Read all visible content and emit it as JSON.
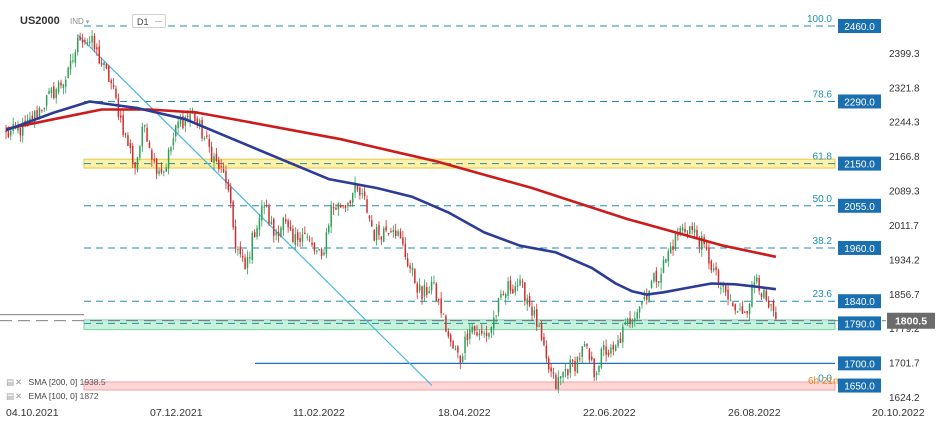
{
  "header": {
    "symbol": "US2000",
    "sub_label": "IND",
    "timeframe": "D1"
  },
  "colors": {
    "candle_up": "#2e9e57",
    "candle_down": "#d12b2b",
    "sma200": "#cc1b1b",
    "ema100": "#2b3b97",
    "fib_line": "#1f8fb0",
    "trendline": "#4ab7e6",
    "support_line": "#1f6fb5",
    "zone_yellow": "#fff1a8",
    "zone_green": "#c9f2dc",
    "zone_pink": "#ffd6d6",
    "level_box": "#1a6fb0",
    "current_box": "#6b6b6b"
  },
  "chart_data": {
    "type": "candlestick",
    "symbol": "US2000",
    "timeframe": "D1",
    "x_tick_labels": [
      "04.10.2021",
      "07.12.2021",
      "11.02.2022",
      "18.04.2022",
      "22.06.2022",
      "26.08.2022",
      "20.10.2022"
    ],
    "y_tick_labels": [
      2399.3,
      2321.8,
      2244.3,
      2166.8,
      2089.3,
      2011.7,
      1934.2,
      1856.7,
      1779.2,
      1701.7,
      1624.2
    ],
    "y_range": [
      1624.2,
      2460.0
    ],
    "current_price": 1800.5,
    "price_levels": [
      2460.0,
      2290.0,
      2150.0,
      2055.0,
      1960.0,
      1840.0,
      1790.0,
      1700.0,
      1650.0
    ],
    "fibonacci": [
      {
        "label": "100.0",
        "value": 2460.0
      },
      {
        "label": "78.6",
        "value": 2290.0
      },
      {
        "label": "61.8",
        "value": 2150.0
      },
      {
        "label": "50.0",
        "value": 2055.0
      },
      {
        "label": "38.2",
        "value": 1960.0
      },
      {
        "label": "23.6",
        "value": 1840.0
      },
      {
        "label": "0.0",
        "value": 1650.0
      }
    ],
    "zones": [
      {
        "from": 2140,
        "to": 2160,
        "color": "yellow"
      },
      {
        "from": 1776,
        "to": 1798,
        "color": "green"
      },
      {
        "from": 1640,
        "to": 1658,
        "color": "pink"
      }
    ],
    "annotation": "6h 21m",
    "indicators": [
      {
        "name": "SMA",
        "params": "[200, 0]",
        "value": 1938.5
      },
      {
        "name": "EMA",
        "params": "[100, 0]",
        "value": 1872.0
      }
    ],
    "anchors": [
      {
        "day": 0,
        "price": 2215
      },
      {
        "day": 8,
        "price": 2230
      },
      {
        "day": 18,
        "price": 2300
      },
      {
        "day": 26,
        "price": 2350
      },
      {
        "day": 31,
        "price": 2440
      },
      {
        "day": 36,
        "price": 2420
      },
      {
        "day": 44,
        "price": 2330
      },
      {
        "day": 50,
        "price": 2210
      },
      {
        "day": 54,
        "price": 2145
      },
      {
        "day": 58,
        "price": 2240
      },
      {
        "day": 62,
        "price": 2150
      },
      {
        "day": 66,
        "price": 2135
      },
      {
        "day": 72,
        "price": 2240
      },
      {
        "day": 78,
        "price": 2265
      },
      {
        "day": 84,
        "price": 2195
      },
      {
        "day": 88,
        "price": 2150
      },
      {
        "day": 92,
        "price": 2115
      },
      {
        "day": 96,
        "price": 1970
      },
      {
        "day": 100,
        "price": 1910
      },
      {
        "day": 104,
        "price": 2000
      },
      {
        "day": 108,
        "price": 2060
      },
      {
        "day": 112,
        "price": 1990
      },
      {
        "day": 116,
        "price": 2020
      },
      {
        "day": 120,
        "price": 1970
      },
      {
        "day": 124,
        "price": 2000
      },
      {
        "day": 128,
        "price": 1960
      },
      {
        "day": 132,
        "price": 1935
      },
      {
        "day": 136,
        "price": 2050
      },
      {
        "day": 142,
        "price": 2060
      },
      {
        "day": 146,
        "price": 2090
      },
      {
        "day": 150,
        "price": 2065
      },
      {
        "day": 154,
        "price": 1990
      },
      {
        "day": 158,
        "price": 2000
      },
      {
        "day": 162,
        "price": 2015
      },
      {
        "day": 166,
        "price": 1960
      },
      {
        "day": 170,
        "price": 1900
      },
      {
        "day": 174,
        "price": 1850
      },
      {
        "day": 178,
        "price": 1880
      },
      {
        "day": 182,
        "price": 1820
      },
      {
        "day": 186,
        "price": 1740
      },
      {
        "day": 190,
        "price": 1710
      },
      {
        "day": 194,
        "price": 1790
      },
      {
        "day": 198,
        "price": 1760
      },
      {
        "day": 202,
        "price": 1770
      },
      {
        "day": 206,
        "price": 1830
      },
      {
        "day": 210,
        "price": 1870
      },
      {
        "day": 214,
        "price": 1880
      },
      {
        "day": 218,
        "price": 1850
      },
      {
        "day": 222,
        "price": 1790
      },
      {
        "day": 226,
        "price": 1700
      },
      {
        "day": 230,
        "price": 1650
      },
      {
        "day": 234,
        "price": 1685
      },
      {
        "day": 238,
        "price": 1700
      },
      {
        "day": 242,
        "price": 1735
      },
      {
        "day": 246,
        "price": 1680
      },
      {
        "day": 250,
        "price": 1730
      },
      {
        "day": 254,
        "price": 1720
      },
      {
        "day": 258,
        "price": 1770
      },
      {
        "day": 262,
        "price": 1810
      },
      {
        "day": 266,
        "price": 1840
      },
      {
        "day": 270,
        "price": 1880
      },
      {
        "day": 274,
        "price": 1910
      },
      {
        "day": 278,
        "price": 1960
      },
      {
        "day": 282,
        "price": 2000
      },
      {
        "day": 286,
        "price": 2005
      },
      {
        "day": 290,
        "price": 1980
      },
      {
        "day": 294,
        "price": 1935
      },
      {
        "day": 298,
        "price": 1880
      },
      {
        "day": 302,
        "price": 1845
      },
      {
        "day": 306,
        "price": 1810
      },
      {
        "day": 310,
        "price": 1830
      },
      {
        "day": 314,
        "price": 1900
      },
      {
        "day": 318,
        "price": 1830
      },
      {
        "day": 322,
        "price": 1800
      }
    ],
    "ema100_points": [
      {
        "day": 0,
        "price": 2225
      },
      {
        "day": 20,
        "price": 2265
      },
      {
        "day": 35,
        "price": 2290
      },
      {
        "day": 55,
        "price": 2275
      },
      {
        "day": 75,
        "price": 2250
      },
      {
        "day": 95,
        "price": 2205
      },
      {
        "day": 115,
        "price": 2160
      },
      {
        "day": 135,
        "price": 2115
      },
      {
        "day": 155,
        "price": 2095
      },
      {
        "day": 170,
        "price": 2075
      },
      {
        "day": 185,
        "price": 2040
      },
      {
        "day": 200,
        "price": 1995
      },
      {
        "day": 215,
        "price": 1965
      },
      {
        "day": 230,
        "price": 1950
      },
      {
        "day": 245,
        "price": 1915
      },
      {
        "day": 255,
        "price": 1880
      },
      {
        "day": 262,
        "price": 1862
      },
      {
        "day": 268,
        "price": 1855
      },
      {
        "day": 275,
        "price": 1860
      },
      {
        "day": 285,
        "price": 1870
      },
      {
        "day": 295,
        "price": 1880
      },
      {
        "day": 305,
        "price": 1878
      },
      {
        "day": 315,
        "price": 1872
      },
      {
        "day": 322,
        "price": 1867
      }
    ],
    "sma200_points": [
      {
        "day": 0,
        "price": 2228
      },
      {
        "day": 20,
        "price": 2250
      },
      {
        "day": 40,
        "price": 2272
      },
      {
        "day": 60,
        "price": 2272
      },
      {
        "day": 80,
        "price": 2265
      },
      {
        "day": 100,
        "price": 2245
      },
      {
        "day": 120,
        "price": 2225
      },
      {
        "day": 140,
        "price": 2205
      },
      {
        "day": 160,
        "price": 2180
      },
      {
        "day": 180,
        "price": 2155
      },
      {
        "day": 200,
        "price": 2125
      },
      {
        "day": 220,
        "price": 2095
      },
      {
        "day": 240,
        "price": 2060
      },
      {
        "day": 260,
        "price": 2025
      },
      {
        "day": 280,
        "price": 1995
      },
      {
        "day": 300,
        "price": 1965
      },
      {
        "day": 322,
        "price": 1940
      }
    ]
  }
}
